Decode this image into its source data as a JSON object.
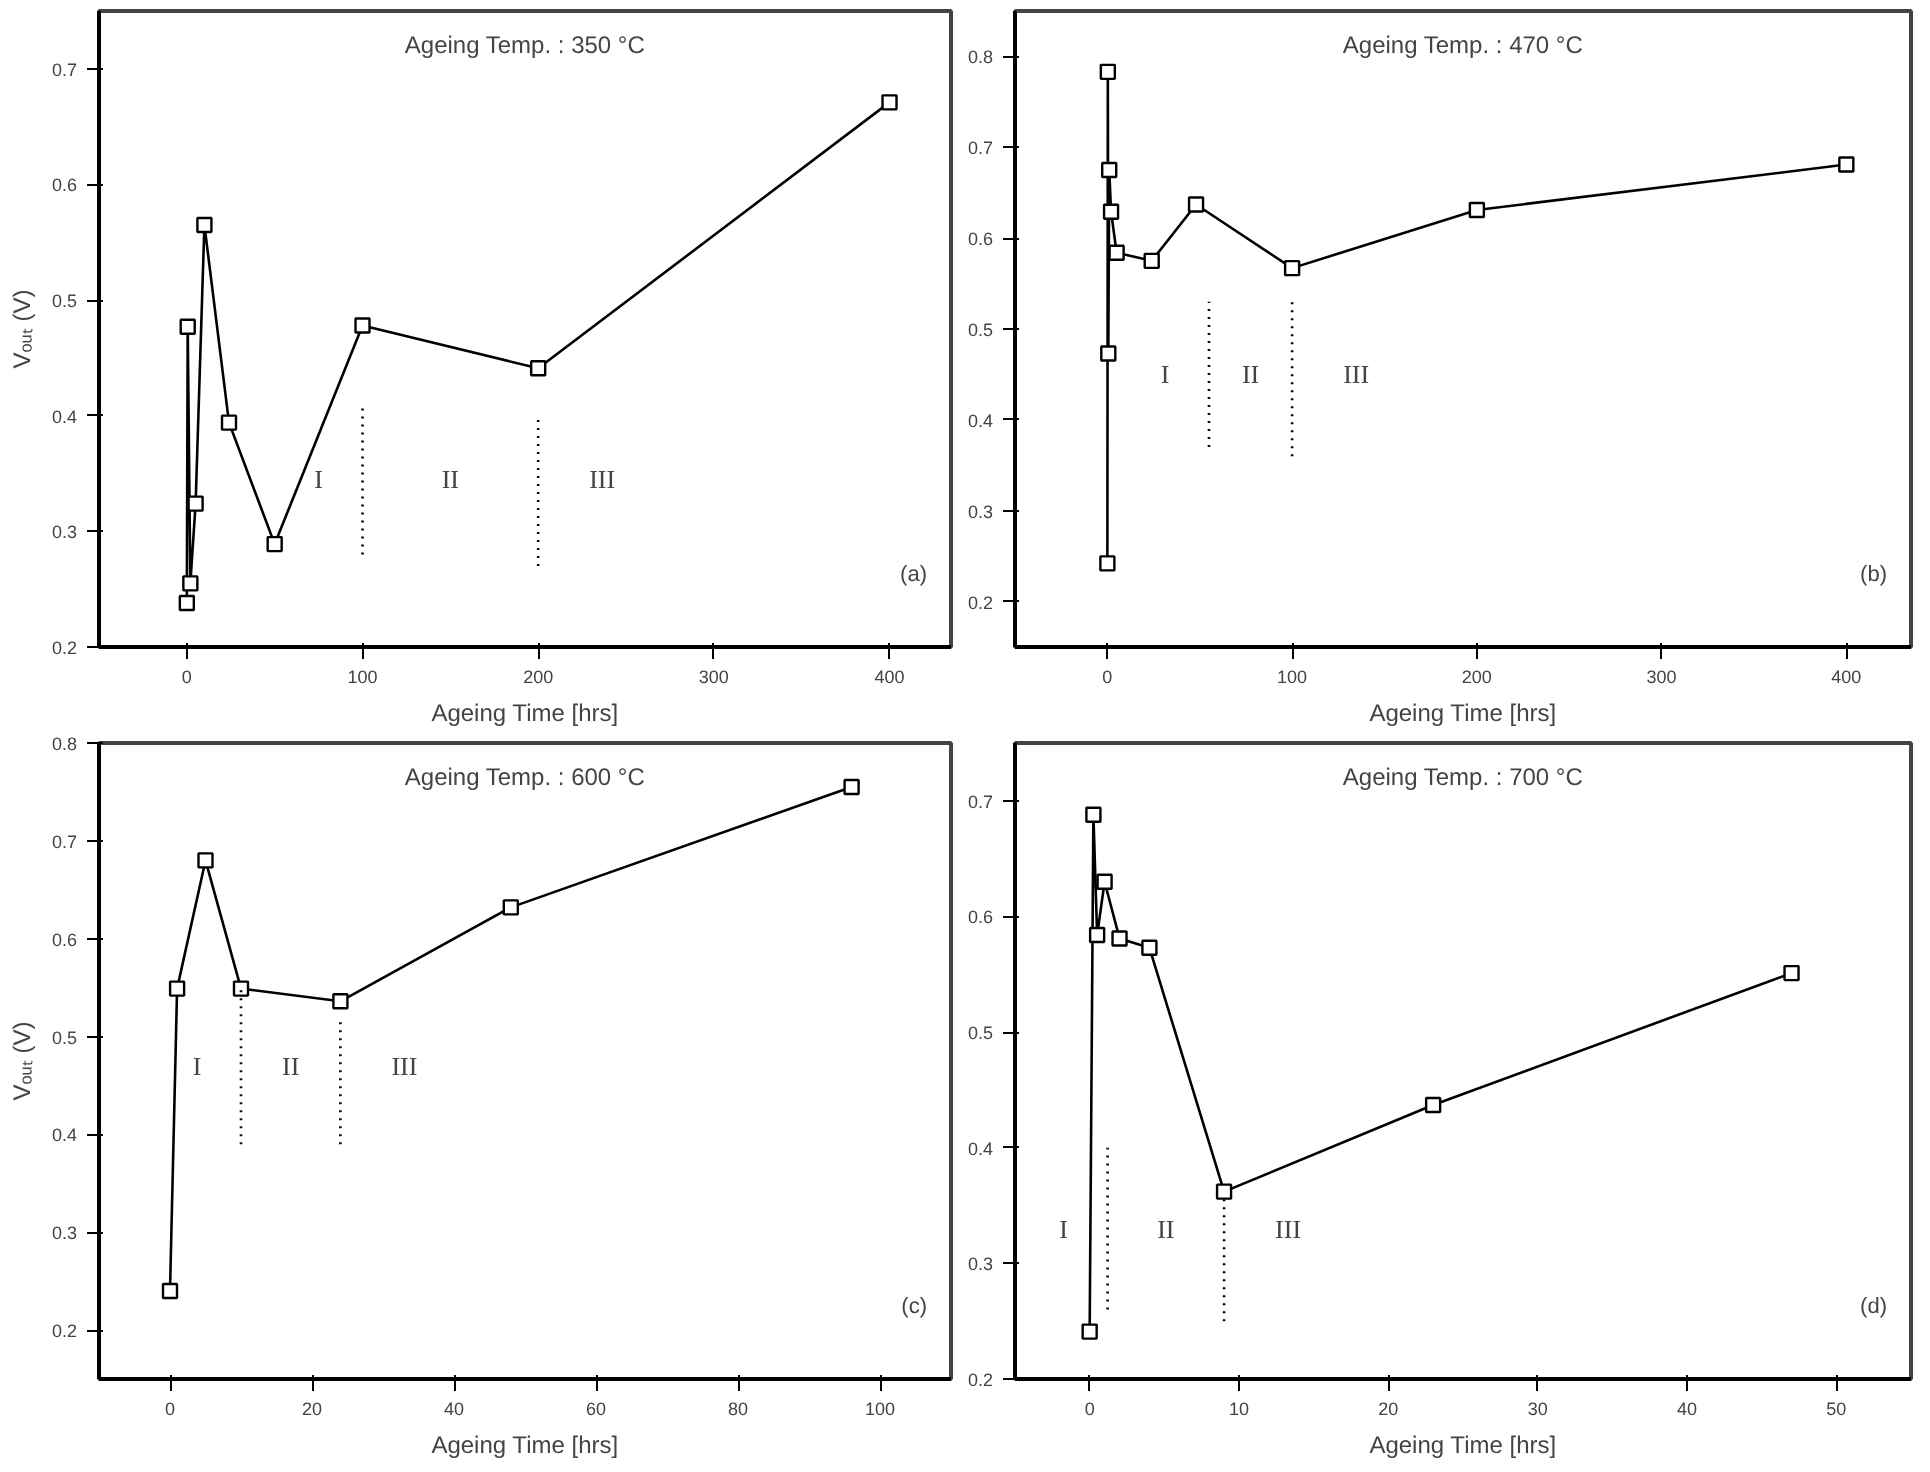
{
  "chart_data": [
    {
      "type": "line",
      "title": "Ageing Temp. : 350 °C",
      "xlabel": "Ageing Time [hrs]",
      "ylabel": "Vₒᵤₜ (V)",
      "marker": "square",
      "grid": false,
      "xlim": [
        -50,
        435
      ],
      "xticks": [
        0,
        100,
        200,
        300,
        400
      ],
      "ylim": [
        0.2,
        0.75
      ],
      "yticks": [
        0.2,
        0.3,
        0.4,
        0.5,
        0.6,
        0.7
      ],
      "series": [
        {
          "color": "#000000",
          "x": [
            0,
            0.5,
            2,
            5,
            10,
            24,
            50,
            100,
            200,
            400
          ],
          "values": [
            0.238,
            0.477,
            0.255,
            0.324,
            0.565,
            0.394,
            0.289,
            0.478,
            0.441,
            0.671
          ]
        },
        {
          "type": "line",
          "line_style": "dotted",
          "marker": "none",
          "color": "#000000",
          "x": [
            100,
            100
          ],
          "values": [
            0.28,
            0.41
          ]
        },
        {
          "type": "line",
          "line_style": "dotted",
          "marker": "none",
          "color": "#000000",
          "x": [
            200,
            200
          ],
          "values": [
            0.27,
            0.4
          ]
        }
      ],
      "annotations": [
        "I",
        "II",
        "III",
        "(a)"
      ]
    },
    {
      "type": "line",
      "title": "Ageing Temp. : 470 °C",
      "xlabel": "Ageing Time [hrs]",
      "marker": "square",
      "grid": false,
      "xlim": [
        -50,
        435
      ],
      "xticks": [
        0,
        100,
        200,
        300,
        400
      ],
      "ylim": [
        0.15,
        0.85
      ],
      "yticks": [
        0.2,
        0.3,
        0.4,
        0.5,
        0.6,
        0.7,
        0.8
      ],
      "series": [
        {
          "color": "#000000",
          "x": [
            0,
            0.25,
            0.5,
            1,
            2,
            5,
            24,
            48,
            100,
            200,
            400
          ],
          "values": [
            0.242,
            0.783,
            0.473,
            0.675,
            0.629,
            0.584,
            0.575,
            0.637,
            0.567,
            0.631,
            0.681
          ]
        },
        {
          "type": "line",
          "line_style": "dotted",
          "marker": "none",
          "color": "#000000",
          "x": [
            55,
            55
          ],
          "values": [
            0.37,
            0.53
          ]
        },
        {
          "type": "line",
          "line_style": "dotted",
          "marker": "none",
          "color": "#000000",
          "x": [
            100,
            100
          ],
          "values": [
            0.36,
            0.53
          ]
        }
      ],
      "annotations": [
        "I",
        "II",
        "III",
        "(b)"
      ]
    },
    {
      "type": "line",
      "title": "Ageing Temp. : 600 °C",
      "xlabel": "Ageing Time [hrs]",
      "ylabel": "Vₒᵤₜ (V)",
      "marker": "square",
      "grid": false,
      "xlim": [
        -10,
        110
      ],
      "xticks": [
        0,
        20,
        40,
        60,
        80,
        100
      ],
      "ylim": [
        0.15,
        0.8
      ],
      "yticks": [
        0.2,
        0.3,
        0.4,
        0.5,
        0.6,
        0.7,
        0.8
      ],
      "series": [
        {
          "color": "#000000",
          "x": [
            0,
            1,
            5,
            10,
            24,
            48,
            96
          ],
          "values": [
            0.24,
            0.549,
            0.68,
            0.549,
            0.536,
            0.632,
            0.755
          ]
        },
        {
          "type": "line",
          "line_style": "dotted",
          "marker": "none",
          "color": "#000000",
          "x": [
            10,
            10
          ],
          "values": [
            0.39,
            0.55
          ]
        },
        {
          "type": "line",
          "line_style": "dotted",
          "marker": "none",
          "color": "#000000",
          "x": [
            24,
            24
          ],
          "values": [
            0.39,
            0.52
          ]
        }
      ],
      "annotations": [
        "I",
        "II",
        "III",
        "(c)"
      ]
    },
    {
      "type": "line",
      "title": "Ageing Temp. : 700 °C",
      "xlabel": "Ageing Time [hrs]",
      "marker": "square",
      "grid": false,
      "xlim": [
        -5,
        55
      ],
      "xticks": [
        0,
        10,
        20,
        30,
        40,
        50
      ],
      "ylim": [
        0.2,
        0.75
      ],
      "yticks": [
        0.2,
        0.3,
        0.4,
        0.5,
        0.6,
        0.7
      ],
      "series": [
        {
          "color": "#000000",
          "x": [
            0,
            0.25,
            0.5,
            1,
            2,
            4,
            9,
            23,
            47
          ],
          "values": [
            0.241,
            0.688,
            0.584,
            0.63,
            0.581,
            0.573,
            0.362,
            0.437,
            0.551
          ]
        },
        {
          "type": "line",
          "line_style": "dotted",
          "marker": "none",
          "color": "#000000",
          "x": [
            1.2,
            1.2
          ],
          "values": [
            0.26,
            0.4
          ]
        },
        {
          "type": "line",
          "line_style": "dotted",
          "marker": "none",
          "color": "#000000",
          "x": [
            9,
            9
          ],
          "values": [
            0.25,
            0.36
          ]
        }
      ],
      "annotations": [
        "I",
        "II",
        "III",
        "(d)"
      ]
    }
  ]
}
